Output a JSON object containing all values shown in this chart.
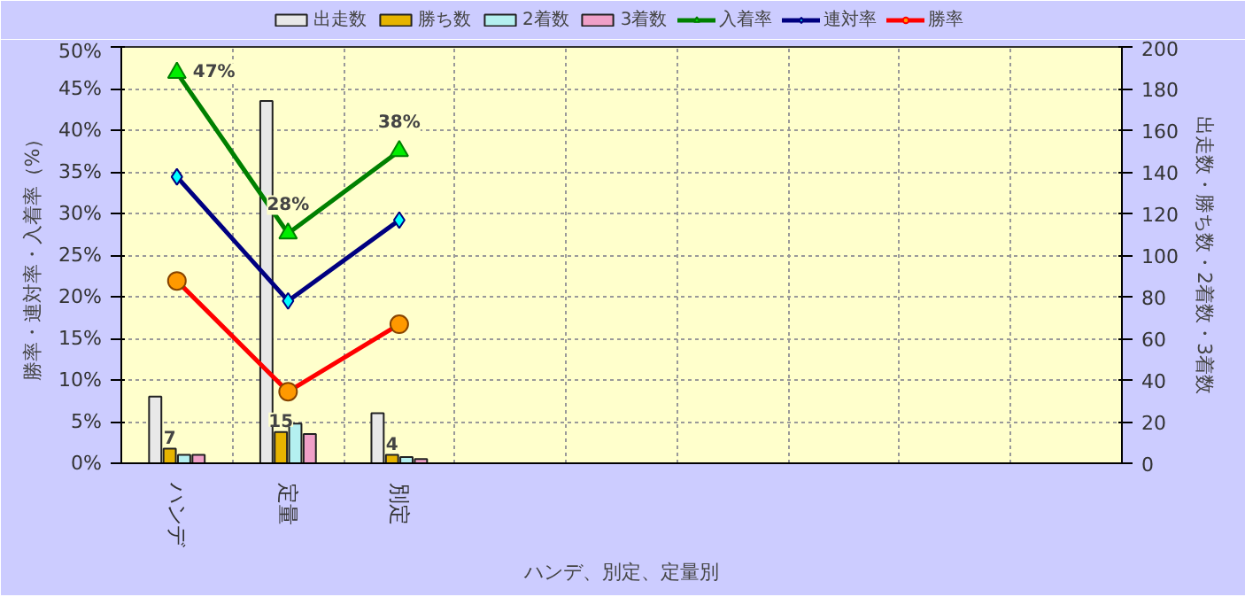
{
  "chart_data": {
    "type": "bar",
    "categories": [
      "ハンデ",
      "定量",
      "別定",
      null,
      null,
      null,
      null,
      null,
      null
    ],
    "xlabel": "ハンデ、別定、定量別",
    "ylabel": "勝率・連対率・入着率（%）",
    "y2label": "出走数・勝ち数・2着数・3着数",
    "ylim": [
      0,
      50
    ],
    "yticks": [
      {
        "value": 0,
        "label": "0%"
      },
      {
        "value": 5,
        "label": "5%"
      },
      {
        "value": 10,
        "label": "10%"
      },
      {
        "value": 15,
        "label": "15%"
      },
      {
        "value": 20,
        "label": "20%"
      },
      {
        "value": 25,
        "label": "25%"
      },
      {
        "value": 30,
        "label": "30%"
      },
      {
        "value": 35,
        "label": "35%"
      },
      {
        "value": 40,
        "label": "40%"
      },
      {
        "value": 45,
        "label": "45%"
      },
      {
        "value": 50,
        "label": "50%"
      }
    ],
    "y2lim": [
      0,
      200
    ],
    "y2ticks": [
      0,
      20,
      40,
      60,
      80,
      100,
      120,
      140,
      160,
      180,
      200
    ],
    "grid": true,
    "legend": "top",
    "series": [
      {
        "name": "出走数",
        "axis": "y2",
        "color": "#e8e8e8",
        "values": [
          32,
          174,
          24,
          null,
          null,
          null,
          null,
          null,
          null
        ]
      },
      {
        "name": "勝ち数",
        "axis": "y2",
        "color": "#e6b400",
        "values": [
          7,
          15,
          4,
          null,
          null,
          null,
          null,
          null,
          null
        ],
        "value_labels": [
          "7",
          "15",
          "4",
          null,
          null,
          null,
          null,
          null,
          null
        ]
      },
      {
        "name": "2着数",
        "axis": "y2",
        "color": "#b4f0f0",
        "values": [
          4,
          19,
          3,
          null,
          null,
          null,
          null,
          null,
          null
        ]
      },
      {
        "name": "3着数",
        "axis": "y2",
        "color": "#f0a0c8",
        "values": [
          4,
          14,
          2,
          null,
          null,
          null,
          null,
          null,
          null
        ]
      },
      {
        "name": "入着率",
        "type": "line",
        "color": "#008000",
        "marker": "triangle",
        "values": [
          46.9,
          27.6,
          37.5,
          null,
          null,
          null,
          null,
          null,
          null
        ],
        "value_labels": [
          "47%",
          "28%",
          "38%",
          null,
          null,
          null,
          null,
          null,
          null
        ]
      },
      {
        "name": "連対率",
        "type": "line",
        "color": "#000080",
        "marker": "diamond",
        "values": [
          34.4,
          19.5,
          29.2,
          null,
          null,
          null,
          null,
          null,
          null
        ]
      },
      {
        "name": "勝率",
        "type": "line",
        "color": "#ff0000",
        "marker": "circle",
        "values": [
          21.9,
          8.6,
          16.7,
          null,
          null,
          null,
          null,
          null,
          null
        ]
      }
    ]
  }
}
